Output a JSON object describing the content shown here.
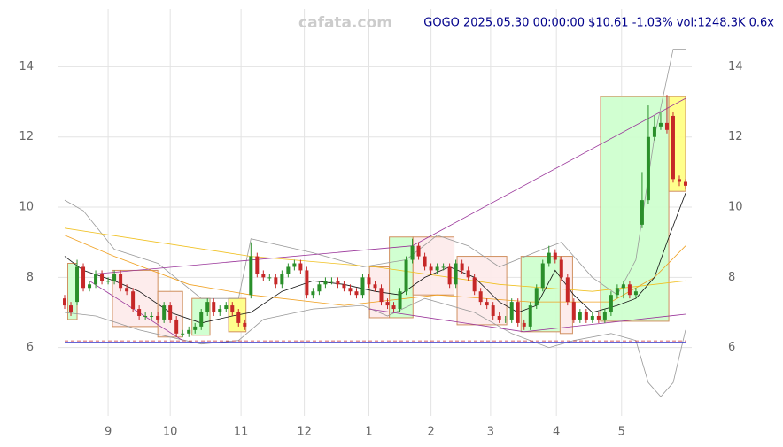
{
  "chart_data": {
    "type": "candlestick",
    "watermark": "cafata.com",
    "title": "GOGO 2025.05.30 00:00:00 $10.61 -1.03% vol:1248.3K 0.6x",
    "xlim": [
      -1,
      101
    ],
    "ylim": [
      4.05,
      15.65
    ],
    "yticks": [
      6,
      8,
      10,
      12,
      14
    ],
    "xticks": [
      {
        "value": 7,
        "label": "9"
      },
      {
        "value": 17,
        "label": "10"
      },
      {
        "value": 28.4,
        "label": "11"
      },
      {
        "value": 38.6,
        "label": "12"
      },
      {
        "value": 49,
        "label": "1"
      },
      {
        "value": 59,
        "label": "2"
      },
      {
        "value": 68.6,
        "label": "3"
      },
      {
        "value": 79.2,
        "label": "4"
      },
      {
        "value": 89.7,
        "label": "5"
      }
    ],
    "grid": true,
    "up_color": "#2a8f2a",
    "down_color": "#c62828",
    "x": [
      0,
      1,
      2,
      3,
      4,
      5,
      6,
      7,
      8,
      9,
      10,
      11,
      12,
      13,
      14,
      15,
      16,
      17,
      18,
      19,
      20,
      21,
      22,
      23,
      24,
      25,
      26,
      27,
      28,
      29,
      30,
      31,
      32,
      33,
      34,
      35,
      36,
      37,
      38,
      39,
      40,
      41,
      42,
      43,
      44,
      45,
      46,
      47,
      48,
      49,
      50,
      51,
      52,
      53,
      54,
      55,
      56,
      57,
      58,
      59,
      60,
      61,
      62,
      63,
      64,
      65,
      66,
      67,
      68,
      69,
      70,
      71,
      72,
      73,
      74,
      75,
      76,
      77,
      78,
      79,
      80,
      81,
      82,
      83,
      84,
      85,
      86,
      87,
      88,
      89,
      90,
      91,
      92,
      93,
      94,
      95,
      96,
      97,
      98,
      99,
      100
    ],
    "open": [
      7.4,
      7.2,
      7.3,
      8.3,
      7.7,
      7.8,
      8.1,
      7.9,
      7.9,
      8.1,
      7.7,
      7.6,
      7.1,
      6.9,
      6.9,
      6.9,
      6.8,
      7.2,
      6.8,
      6.4,
      6.4,
      6.5,
      6.6,
      7.0,
      7.3,
      7.0,
      7.1,
      7.2,
      7.0,
      6.7,
      7.5,
      8.6,
      8.1,
      8.0,
      8.0,
      7.8,
      8.1,
      8.3,
      8.4,
      8.2,
      7.5,
      7.6,
      7.8,
      7.9,
      7.9,
      7.8,
      7.7,
      7.6,
      7.5,
      8.0,
      7.8,
      7.7,
      7.3,
      7.2,
      7.1,
      7.6,
      8.5,
      8.9,
      8.6,
      8.3,
      8.2,
      8.3,
      8.3,
      7.8,
      8.4,
      8.2,
      8.0,
      7.6,
      7.3,
      7.2,
      6.9,
      6.8,
      6.8,
      7.3,
      6.7,
      6.6,
      7.2,
      7.7,
      8.4,
      8.7,
      8.5,
      8.0,
      7.3,
      6.8,
      7.0,
      6.8,
      6.9,
      6.8,
      7.0,
      7.5,
      7.7,
      7.8,
      7.5,
      9.5,
      10.2,
      12.0,
      12.3,
      12.4,
      12.6,
      10.8,
      10.72
    ],
    "high": [
      7.5,
      7.3,
      8.5,
      8.4,
      7.9,
      8.2,
      8.2,
      8.0,
      8.2,
      8.2,
      7.8,
      7.7,
      7.2,
      7.0,
      7.0,
      7.0,
      7.3,
      7.3,
      6.9,
      6.5,
      6.6,
      6.7,
      7.1,
      7.4,
      7.4,
      7.2,
      7.3,
      7.3,
      7.1,
      6.8,
      9.0,
      8.7,
      8.2,
      8.1,
      8.1,
      8.2,
      8.4,
      8.5,
      8.5,
      8.3,
      7.7,
      7.9,
      8.0,
      8.0,
      8.0,
      7.9,
      7.8,
      7.7,
      8.1,
      8.1,
      7.9,
      7.8,
      7.4,
      7.3,
      7.7,
      8.6,
      9.1,
      9.0,
      8.7,
      8.4,
      8.4,
      8.4,
      8.4,
      8.5,
      8.5,
      8.3,
      8.1,
      7.7,
      7.4,
      7.3,
      7.0,
      6.9,
      7.4,
      7.4,
      6.8,
      7.3,
      7.8,
      8.5,
      8.9,
      8.8,
      8.6,
      8.1,
      7.4,
      7.1,
      7.1,
      7.0,
      7.0,
      7.1,
      7.6,
      7.8,
      7.9,
      7.9,
      7.7,
      11.0,
      12.9,
      12.6,
      12.7,
      13.2,
      12.7,
      10.9,
      10.8
    ],
    "low": [
      7.1,
      6.9,
      7.2,
      7.6,
      7.6,
      7.7,
      7.8,
      7.8,
      7.8,
      7.6,
      7.5,
      7.0,
      6.8,
      6.8,
      6.8,
      6.7,
      6.7,
      6.7,
      6.3,
      6.3,
      6.3,
      6.4,
      6.5,
      6.9,
      6.9,
      6.9,
      7.0,
      6.9,
      6.6,
      6.5,
      7.4,
      8.0,
      7.9,
      7.9,
      7.7,
      7.7,
      8.0,
      8.2,
      8.1,
      7.4,
      7.4,
      7.5,
      7.7,
      7.8,
      7.7,
      7.6,
      7.5,
      7.4,
      7.4,
      7.7,
      7.6,
      7.2,
      7.1,
      7.0,
      7.0,
      7.5,
      8.4,
      8.5,
      8.2,
      8.1,
      8.1,
      8.2,
      7.7,
      7.7,
      8.1,
      7.9,
      7.5,
      7.2,
      7.1,
      6.8,
      6.7,
      6.7,
      6.7,
      6.6,
      6.5,
      6.5,
      7.1,
      7.6,
      8.3,
      8.4,
      7.9,
      7.2,
      6.7,
      6.7,
      6.7,
      6.7,
      6.7,
      6.7,
      6.9,
      7.4,
      7.4,
      7.4,
      7.4,
      9.4,
      10.1,
      11.9,
      12.2,
      12.1,
      10.7,
      10.6,
      10.5
    ],
    "close": [
      7.2,
      7.0,
      8.3,
      7.7,
      7.8,
      8.1,
      7.9,
      7.9,
      8.1,
      7.7,
      7.6,
      7.1,
      6.9,
      6.9,
      6.9,
      6.8,
      7.2,
      6.8,
      6.4,
      6.4,
      6.5,
      6.6,
      7.0,
      7.3,
      7.0,
      7.1,
      7.2,
      7.0,
      6.7,
      6.6,
      8.6,
      8.1,
      8.0,
      8.0,
      7.8,
      8.1,
      8.3,
      8.4,
      8.2,
      7.5,
      7.6,
      7.8,
      7.9,
      7.9,
      7.8,
      7.7,
      7.6,
      7.5,
      8.0,
      7.8,
      7.7,
      7.3,
      7.2,
      7.1,
      7.6,
      8.5,
      8.9,
      8.6,
      8.3,
      8.2,
      8.3,
      8.3,
      7.8,
      8.4,
      8.2,
      8.0,
      7.6,
      7.3,
      7.2,
      6.9,
      6.8,
      6.8,
      7.3,
      6.7,
      6.6,
      7.2,
      7.7,
      8.4,
      8.7,
      8.5,
      8.0,
      7.3,
      6.8,
      7.0,
      6.8,
      6.9,
      6.8,
      7.0,
      7.5,
      7.7,
      7.8,
      7.5,
      7.6,
      10.2,
      12.0,
      12.3,
      12.4,
      12.2,
      10.8,
      10.72,
      10.61
    ],
    "overlays": {
      "boxes": [
        {
          "x": [
            0.5,
            2
          ],
          "range": [
            6.8,
            8.4
          ],
          "color": "#ccffcc"
        },
        {
          "x": [
            7.7,
            15
          ],
          "range": [
            6.6,
            8.2
          ],
          "color": "#fdeaea"
        },
        {
          "x": [
            15,
            19
          ],
          "range": [
            6.3,
            7.6
          ],
          "color": "#fdeaea"
        },
        {
          "x": [
            20.5,
            23.4
          ],
          "range": [
            6.35,
            7.4
          ],
          "color": "#ccffcc"
        },
        {
          "x": [
            26.4,
            29.2
          ],
          "range": [
            6.45,
            7.4
          ],
          "color": "#ffff80"
        },
        {
          "x": [
            49.1,
            52.3
          ],
          "range": [
            6.85,
            8.3
          ],
          "color": "#fdeaea"
        },
        {
          "x": [
            52.3,
            56.1
          ],
          "range": [
            6.85,
            9.15
          ],
          "color": "#ccffcc"
        },
        {
          "x": [
            56.1,
            62.7
          ],
          "range": [
            7.5,
            9.15
          ],
          "color": "#fdeaea"
        },
        {
          "x": [
            63.2,
            71.2
          ],
          "range": [
            6.65,
            8.6
          ],
          "color": "#fdeaea"
        },
        {
          "x": [
            73.5,
            79.8
          ],
          "range": [
            6.45,
            8.6
          ],
          "color": "#ccffcc"
        },
        {
          "x": [
            79.8,
            81.8
          ],
          "range": [
            6.4,
            8.6
          ],
          "color": "#fdeaea"
        },
        {
          "x": [
            86.3,
            97.3
          ],
          "range": [
            6.75,
            13.15
          ],
          "color": "#ccffcc"
        },
        {
          "x": [
            97.3,
            100
          ],
          "range": [
            10.45,
            13.15
          ],
          "color": "#ffff80"
        }
      ],
      "lines": [
        {
          "color": "#999999",
          "x": [
            0,
            3,
            8,
            15,
            22,
            28,
            30,
            40,
            48,
            55,
            60,
            65,
            70,
            77,
            80,
            85,
            89,
            92,
            95,
            98,
            100
          ],
          "values": [
            10.2,
            9.9,
            8.8,
            8.4,
            7.4,
            7.4,
            9.1,
            8.7,
            8.3,
            8.5,
            9.2,
            8.9,
            8.3,
            8.8,
            9.0,
            8.0,
            7.5,
            8.5,
            12,
            14.5,
            14.5
          ]
        },
        {
          "color": "#999999",
          "x": [
            0,
            5,
            12,
            17,
            22,
            28,
            32,
            40,
            48,
            52,
            58,
            66,
            72,
            78,
            82,
            88,
            92,
            94,
            96,
            98,
            100
          ],
          "values": [
            7.0,
            6.9,
            6.5,
            6.3,
            6.1,
            6.2,
            6.8,
            7.1,
            7.2,
            6.9,
            7.4,
            7.0,
            6.4,
            6.0,
            6.2,
            6.4,
            6.2,
            5.0,
            4.6,
            5.0,
            6.5
          ]
        },
        {
          "color": "#f0c020",
          "x": [
            0,
            30,
            50,
            70,
            85,
            100
          ],
          "values": [
            9.4,
            8.6,
            8.3,
            7.8,
            7.6,
            7.9
          ]
        },
        {
          "color": "#f0a020",
          "x": [
            0,
            8,
            20,
            30,
            45,
            60,
            75,
            88,
            95,
            100
          ],
          "values": [
            9.2,
            8.6,
            7.8,
            7.5,
            7.2,
            7.5,
            7.3,
            7.3,
            8.0,
            8.9
          ]
        },
        {
          "color": "#111111",
          "x": [
            0,
            3,
            8,
            12,
            17,
            22,
            27,
            30,
            35,
            40,
            45,
            50,
            54,
            58,
            62,
            66,
            70,
            73,
            76,
            79,
            82,
            85,
            89,
            92,
            95,
            97,
            100
          ],
          "values": [
            8.6,
            8.2,
            7.9,
            7.6,
            7.0,
            6.7,
            6.9,
            7.0,
            7.6,
            7.9,
            7.8,
            7.6,
            7.5,
            8.0,
            8.3,
            8.0,
            7.3,
            7.0,
            7.2,
            8.2,
            7.5,
            7.0,
            7.2,
            7.4,
            8.0,
            9.0,
            10.4
          ]
        },
        {
          "color": "#993399",
          "x": [
            5,
            56,
            100
          ],
          "values": [
            8.1,
            8.9,
            13.1
          ]
        },
        {
          "color": "#993399",
          "x": [
            4,
            19
          ],
          "values": [
            7.9,
            6.2
          ]
        },
        {
          "color": "#993399",
          "x": [
            49,
            74
          ],
          "values": [
            7.1,
            6.45
          ]
        },
        {
          "color": "#993399",
          "x": [
            74,
            100
          ],
          "values": [
            6.45,
            6.95
          ]
        },
        {
          "color": "#3333cc",
          "x": [
            0,
            100
          ],
          "values": [
            6.15,
            6.15
          ]
        },
        {
          "color": "#cc3333",
          "dash": true,
          "x": [
            0,
            100
          ],
          "values": [
            6.19,
            6.19
          ]
        }
      ]
    }
  }
}
